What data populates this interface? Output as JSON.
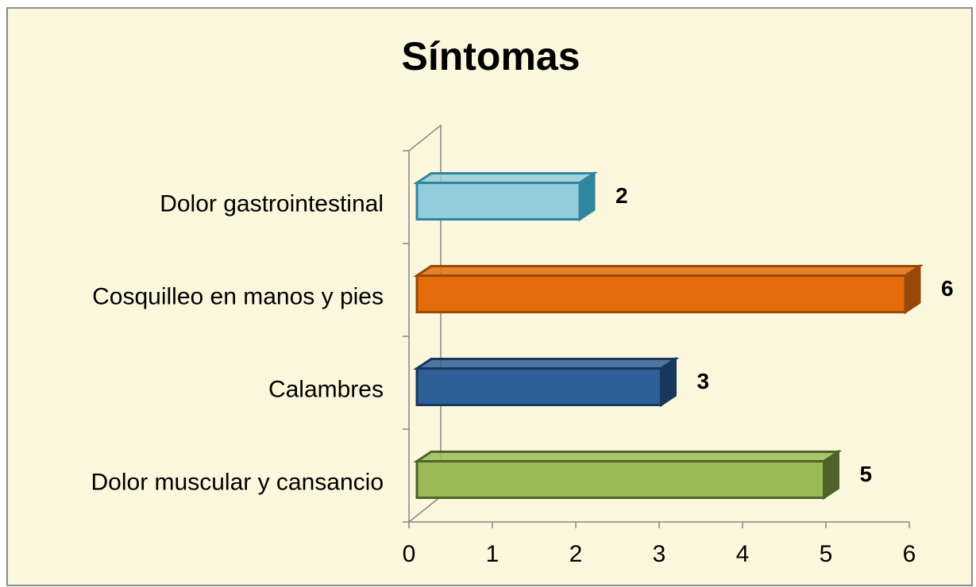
{
  "chart_data": {
    "type": "bar",
    "orientation": "horizontal",
    "title": "Síntomas",
    "categories": [
      "Dolor gastrointestinal",
      "Cosquilleo en manos y pies",
      "Calambres",
      "Dolor muscular y cansancio"
    ],
    "values": [
      2,
      6,
      3,
      5
    ],
    "colors": [
      "#93cddd",
      "#e46c0a",
      "#2f5f97",
      "#9bbb59"
    ],
    "edge_colors": [
      "#31859c",
      "#984807",
      "#17375e",
      "#4f6228"
    ],
    "xlim": [
      0,
      6
    ],
    "xticks": [
      0,
      1,
      2,
      3,
      4,
      5,
      6
    ]
  }
}
